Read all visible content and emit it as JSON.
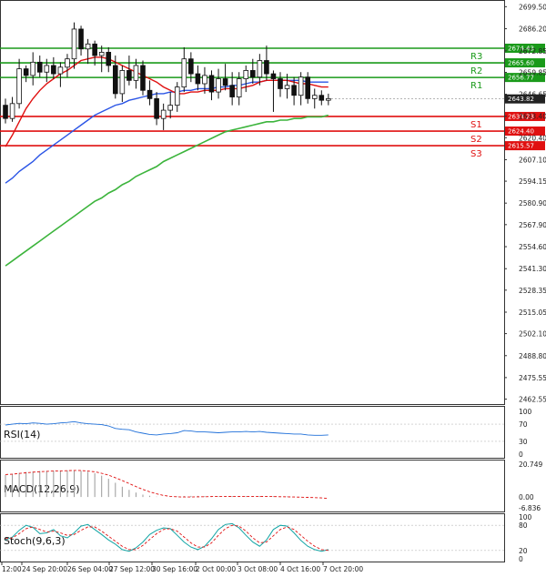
{
  "chart_data": {
    "type": "candlestick",
    "instrument": "Gold (XAU/USD), 4H",
    "price_axis": {
      "ticks": [
        "2699.50",
        "2686.20",
        "2672.85",
        "2659.85",
        "2646.65",
        "2633.40",
        "2620.40",
        "2607.10",
        "2594.15",
        "2580.90",
        "2567.90",
        "2554.60",
        "2541.30",
        "2528.35",
        "2515.05",
        "2502.10",
        "2488.80",
        "2475.55",
        "2462.55"
      ],
      "ylim": [
        2459.0,
        2703.0
      ]
    },
    "time_axis": {
      "labels": [
        "12:00",
        "24 Sep 20:00",
        "26 Sep 04:00",
        "27 Sep 12:00",
        "30 Sep 16:00",
        "2 Oct 00:00",
        "3 Oct 08:00",
        "4 Oct 16:00",
        "7 Oct 20:00"
      ]
    },
    "current_price": "2643.82",
    "levels": [
      {
        "name": "R3",
        "value": "2674.43",
        "color": "#1a9a1a"
      },
      {
        "name": "R2",
        "value": "2665.60",
        "color": "#1a9a1a"
      },
      {
        "name": "R1",
        "value": "2656.77",
        "color": "#1a9a1a"
      },
      {
        "name": "S1",
        "value": "2633.23",
        "color": "#e01010"
      },
      {
        "name": "S2",
        "value": "2624.40",
        "color": "#e01010"
      },
      {
        "name": "S3",
        "value": "2615.57",
        "color": "#e01010"
      }
    ],
    "series_colors": {
      "up": "#1a9a1a",
      "down": "#e01010",
      "ma_fast": "#e01010",
      "ma_mid": "#2b55e6",
      "ma_slow": "#3cb43c"
    },
    "candles": [
      [
        2640,
        2644,
        2629,
        2632
      ],
      [
        2632,
        2645,
        2630,
        2641
      ],
      [
        2641,
        2668,
        2638,
        2662
      ],
      [
        2662,
        2664,
        2654,
        2658
      ],
      [
        2658,
        2672,
        2652,
        2666
      ],
      [
        2666,
        2670,
        2657,
        2660
      ],
      [
        2660,
        2668,
        2654,
        2664
      ],
      [
        2664,
        2669,
        2656,
        2659
      ],
      [
        2659,
        2666,
        2651,
        2663
      ],
      [
        2663,
        2671,
        2657,
        2668
      ],
      [
        2668,
        2690,
        2662,
        2686
      ],
      [
        2686,
        2688,
        2670,
        2674
      ],
      [
        2674,
        2680,
        2665,
        2677
      ],
      [
        2677,
        2679,
        2664,
        2670
      ],
      [
        2670,
        2676,
        2660,
        2672
      ],
      [
        2672,
        2675,
        2660,
        2664
      ],
      [
        2664,
        2670,
        2644,
        2647
      ],
      [
        2647,
        2664,
        2642,
        2661
      ],
      [
        2661,
        2670,
        2652,
        2655
      ],
      [
        2655,
        2668,
        2650,
        2664
      ],
      [
        2664,
        2667,
        2646,
        2649
      ],
      [
        2649,
        2655,
        2640,
        2644
      ],
      [
        2644,
        2648,
        2628,
        2632
      ],
      [
        2632,
        2641,
        2625,
        2637
      ],
      [
        2637,
        2648,
        2632,
        2640
      ],
      [
        2640,
        2654,
        2636,
        2651
      ],
      [
        2651,
        2675,
        2648,
        2668
      ],
      [
        2668,
        2672,
        2654,
        2659
      ],
      [
        2659,
        2664,
        2649,
        2653
      ],
      [
        2653,
        2663,
        2647,
        2658
      ],
      [
        2658,
        2661,
        2643,
        2648
      ],
      [
        2648,
        2662,
        2644,
        2656
      ],
      [
        2656,
        2665,
        2649,
        2652
      ],
      [
        2652,
        2660,
        2640,
        2645
      ],
      [
        2645,
        2660,
        2640,
        2656
      ],
      [
        2656,
        2664,
        2648,
        2661
      ],
      [
        2661,
        2668,
        2653,
        2657
      ],
      [
        2657,
        2671,
        2652,
        2667
      ],
      [
        2667,
        2676,
        2655,
        2659
      ],
      [
        2659,
        2661,
        2636,
        2656
      ],
      [
        2656,
        2660,
        2645,
        2650
      ],
      [
        2650,
        2659,
        2644,
        2652
      ],
      [
        2652,
        2657,
        2640,
        2646
      ],
      [
        2646,
        2660,
        2640,
        2657
      ],
      [
        2657,
        2660,
        2641,
        2644
      ],
      [
        2644,
        2650,
        2638,
        2646
      ],
      [
        2646,
        2649,
        2640,
        2643
      ],
      [
        2643,
        2647,
        2640,
        2644
      ]
    ],
    "moving_averages": {
      "fast": [
        2615,
        2622,
        2630,
        2638,
        2644,
        2649,
        2653,
        2656,
        2659,
        2661,
        2664,
        2667,
        2668,
        2669,
        2669,
        2668,
        2666,
        2664,
        2662,
        2660,
        2658,
        2656,
        2654,
        2651,
        2649,
        2647,
        2647,
        2648,
        2648,
        2649,
        2649,
        2649,
        2650,
        2650,
        2650,
        2651,
        2652,
        2654,
        2655,
        2655,
        2655,
        2655,
        2654,
        2653,
        2653,
        2652,
        2651,
        2651
      ],
      "mid": [
        2593,
        2596,
        2600,
        2603,
        2606,
        2610,
        2613,
        2616,
        2619,
        2622,
        2625,
        2628,
        2631,
        2634,
        2636,
        2638,
        2640,
        2641,
        2643,
        2644,
        2645,
        2646,
        2647,
        2647,
        2648,
        2648,
        2649,
        2649,
        2650,
        2650,
        2650,
        2651,
        2651,
        2652,
        2652,
        2653,
        2654,
        2654,
        2655,
        2655,
        2655,
        2655,
        2655,
        2655,
        2654,
        2654,
        2654,
        2654
      ],
      "slow": [
        2543,
        2546,
        2549,
        2552,
        2555,
        2558,
        2561,
        2564,
        2567,
        2570,
        2573,
        2576,
        2579,
        2582,
        2584,
        2587,
        2589,
        2592,
        2594,
        2597,
        2599,
        2601,
        2603,
        2606,
        2608,
        2610,
        2612,
        2614,
        2616,
        2618,
        2620,
        2622,
        2624,
        2625,
        2626,
        2627,
        2628,
        2629,
        2630,
        2630,
        2631,
        2631,
        2632,
        2632,
        2633,
        2633,
        2633,
        2634
      ]
    },
    "rsi": {
      "label": "RSI(14)",
      "ticks": [
        "100",
        "70",
        "30",
        "0"
      ],
      "ylim": [
        0,
        100
      ],
      "values": [
        68,
        70,
        72,
        71,
        73,
        72,
        70,
        71,
        73,
        74,
        76,
        73,
        71,
        70,
        69,
        66,
        60,
        58,
        57,
        52,
        49,
        46,
        45,
        47,
        48,
        50,
        55,
        54,
        52,
        52,
        51,
        50,
        51,
        52,
        52,
        53,
        52,
        53,
        51,
        50,
        49,
        48,
        47,
        47,
        45,
        44,
        44,
        45
      ]
    },
    "macd": {
      "label": "MACD(12,26,9)",
      "ticks": [
        "20.749",
        "0.00",
        "-6.836"
      ],
      "ylim": [
        -6.836,
        20.749
      ],
      "histogram": [
        14.0,
        14.5,
        15.2,
        15.8,
        16.1,
        16.4,
        16.5,
        16.6,
        16.7,
        16.8,
        17.0,
        16.5,
        16.0,
        15.0,
        13.5,
        11.5,
        9.0,
        6.5,
        4.5,
        2.8,
        1.5,
        0.8,
        0.2,
        0.0,
        0.1,
        0.3,
        0.6,
        0.7,
        0.7,
        0.6,
        0.5,
        0.4,
        0.5,
        0.6,
        0.6,
        0.5,
        0.5,
        0.6,
        0.5,
        0.5,
        0.4,
        0.3,
        0.2,
        0.1,
        0.1,
        0.0,
        0.0,
        0.0
      ],
      "signal": [
        14.2,
        14.4,
        14.9,
        15.3,
        15.7,
        16.0,
        16.2,
        16.4,
        16.5,
        16.6,
        16.8,
        16.7,
        16.4,
        15.9,
        15.0,
        13.8,
        12.2,
        10.4,
        8.5,
        6.6,
        4.8,
        3.3,
        2.0,
        1.0,
        0.4,
        0.1,
        0.0,
        0.0,
        0.1,
        0.2,
        0.3,
        0.3,
        0.3,
        0.4,
        0.4,
        0.4,
        0.4,
        0.4,
        0.3,
        0.3,
        0.2,
        0.1,
        0.0,
        -0.1,
        -0.2,
        -0.4,
        -0.6,
        -0.9
      ]
    },
    "stoch": {
      "label": "Stoch(9,6,3)",
      "ticks": [
        "100",
        "80",
        "20",
        "0"
      ],
      "ylim": [
        0,
        100
      ],
      "main": [
        45,
        52,
        68,
        80,
        75,
        60,
        62,
        70,
        55,
        50,
        62,
        78,
        82,
        70,
        58,
        45,
        35,
        22,
        18,
        26,
        40,
        58,
        68,
        74,
        72,
        56,
        40,
        28,
        22,
        30,
        48,
        70,
        82,
        84,
        74,
        56,
        40,
        30,
        45,
        70,
        80,
        78,
        62,
        44,
        30,
        22,
        18,
        22
      ],
      "signal": [
        48,
        50,
        60,
        72,
        76,
        70,
        64,
        66,
        62,
        56,
        58,
        68,
        76,
        76,
        66,
        54,
        42,
        30,
        22,
        22,
        32,
        46,
        60,
        70,
        72,
        66,
        52,
        38,
        28,
        28,
        38,
        56,
        72,
        80,
        78,
        66,
        50,
        38,
        40,
        55,
        70,
        76,
        70,
        56,
        42,
        30,
        22,
        20
      ]
    }
  }
}
